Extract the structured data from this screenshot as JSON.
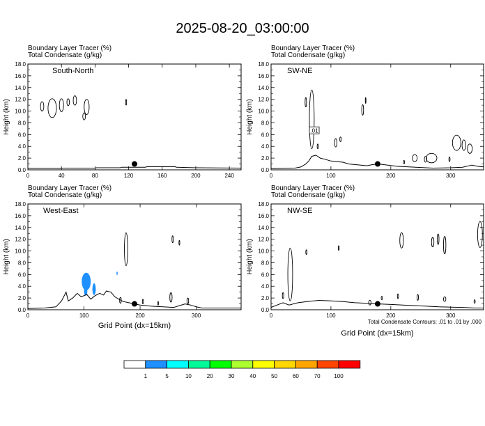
{
  "title": "2025-08-20_03:00:00",
  "panel_header": {
    "line1": "Boundary Layer Tracer   (%)",
    "line2": "Total Condensate   (g/kg)"
  },
  "ylabel": "Height (km)",
  "xlabel": "Grid Point (dx=15km)",
  "contour_note": "Total Condensate Contours: .01 to .01 by .000",
  "colorbar": {
    "colors": [
      "#ffffff",
      "#1e90ff",
      "#00ffff",
      "#00fa9a",
      "#00ff00",
      "#adff2f",
      "#ffff00",
      "#ffd700",
      "#ffa500",
      "#ff4500",
      "#ff0000"
    ],
    "labels": [
      "1",
      "5",
      "10",
      "20",
      "30",
      "40",
      "50",
      "60",
      "70",
      "100"
    ]
  },
  "chart_data": [
    {
      "type": "contour",
      "title": "South-North",
      "xlim": [
        0,
        254
      ],
      "xticks": [
        "0",
        "40",
        "80",
        "120",
        "160",
        "200",
        "240"
      ],
      "ylim": [
        0,
        18
      ],
      "yticks": [
        "0.0",
        "2.0",
        "4.0",
        "6.0",
        "8.0",
        "10.0",
        "12.0",
        "14.0",
        "16.0",
        "18.0"
      ],
      "marker": {
        "x": 127,
        "y": 1.0
      },
      "terrain": [
        [
          0,
          0.25
        ],
        [
          40,
          0.25
        ],
        [
          42,
          0.3
        ],
        [
          80,
          0.3
        ],
        [
          82,
          0.35
        ],
        [
          110,
          0.35
        ],
        [
          112,
          0.45
        ],
        [
          140,
          0.45
        ],
        [
          142,
          0.55
        ],
        [
          175,
          0.55
        ],
        [
          177,
          0.45
        ],
        [
          200,
          0.35
        ],
        [
          254,
          0.3
        ]
      ]
    },
    {
      "type": "contour",
      "title": "SW-NE",
      "xlim": [
        0,
        355
      ],
      "xticks": [
        "0",
        "100",
        "200",
        "300"
      ],
      "ylim": [
        0,
        18
      ],
      "yticks": [
        "0.0",
        "2.0",
        "4.0",
        "6.0",
        "8.0",
        "10.0",
        "12.0",
        "14.0",
        "16.0",
        "18.0"
      ],
      "contour_label": ".01",
      "marker": {
        "x": 178,
        "y": 1.0
      },
      "terrain": [
        [
          0,
          0.2
        ],
        [
          40,
          0.3
        ],
        [
          50,
          0.5
        ],
        [
          58,
          1.0
        ],
        [
          63,
          1.5
        ],
        [
          68,
          2.3
        ],
        [
          75,
          2.5
        ],
        [
          82,
          2.0
        ],
        [
          90,
          1.8
        ],
        [
          100,
          1.5
        ],
        [
          110,
          1.4
        ],
        [
          120,
          1.3
        ],
        [
          130,
          1.0
        ],
        [
          140,
          0.9
        ],
        [
          150,
          0.8
        ],
        [
          160,
          0.7
        ],
        [
          170,
          0.9
        ],
        [
          180,
          1.0
        ],
        [
          195,
          0.8
        ],
        [
          210,
          0.6
        ],
        [
          230,
          0.5
        ],
        [
          250,
          0.4
        ],
        [
          270,
          0.3
        ],
        [
          300,
          0.35
        ],
        [
          320,
          0.45
        ],
        [
          335,
          0.8
        ],
        [
          345,
          0.6
        ],
        [
          355,
          0.5
        ]
      ]
    },
    {
      "type": "contour",
      "title": "West-East",
      "xlim": [
        0,
        380
      ],
      "xticks": [
        "0",
        "100",
        "200",
        "300"
      ],
      "ylim": [
        0,
        18
      ],
      "yticks": [
        "0.0",
        "2.0",
        "4.0",
        "6.0",
        "8.0",
        "10.0",
        "12.0",
        "14.0",
        "16.0",
        "18.0"
      ],
      "marker": {
        "x": 190,
        "y": 1.0
      },
      "terrain": [
        [
          0,
          0.2
        ],
        [
          30,
          0.3
        ],
        [
          50,
          0.5
        ],
        [
          60,
          1.5
        ],
        [
          68,
          3.0
        ],
        [
          72,
          1.5
        ],
        [
          80,
          2.0
        ],
        [
          88,
          2.8
        ],
        [
          95,
          2.2
        ],
        [
          105,
          2.6
        ],
        [
          112,
          1.8
        ],
        [
          120,
          2.4
        ],
        [
          128,
          2.8
        ],
        [
          135,
          2.5
        ],
        [
          140,
          3.2
        ],
        [
          148,
          3.0
        ],
        [
          155,
          2.2
        ],
        [
          162,
          1.8
        ],
        [
          170,
          1.4
        ],
        [
          180,
          1.2
        ],
        [
          190,
          1.0
        ],
        [
          200,
          0.8
        ],
        [
          220,
          0.6
        ],
        [
          240,
          0.5
        ],
        [
          260,
          0.4
        ],
        [
          280,
          1.0
        ],
        [
          290,
          0.8
        ],
        [
          300,
          0.5
        ],
        [
          310,
          0.3
        ],
        [
          380,
          0.3
        ]
      ]
    },
    {
      "type": "contour",
      "title": "NW-SE",
      "xlim": [
        0,
        355
      ],
      "xticks": [
        "0",
        "100",
        "200",
        "300"
      ],
      "ylim": [
        0,
        18
      ],
      "yticks": [
        "0.0",
        "2.0",
        "4.0",
        "6.0",
        "8.0",
        "10.0",
        "12.0",
        "14.0",
        "16.0",
        "18.0"
      ],
      "marker": {
        "x": 178,
        "y": 1.0
      },
      "terrain": [
        [
          0,
          0.4
        ],
        [
          10,
          0.8
        ],
        [
          20,
          1.2
        ],
        [
          30,
          0.8
        ],
        [
          45,
          1.2
        ],
        [
          60,
          1.4
        ],
        [
          80,
          1.6
        ],
        [
          100,
          1.5
        ],
        [
          120,
          1.4
        ],
        [
          140,
          1.2
        ],
        [
          160,
          1.1
        ],
        [
          180,
          1.0
        ],
        [
          200,
          0.9
        ],
        [
          220,
          0.8
        ],
        [
          240,
          0.7
        ],
        [
          260,
          0.6
        ],
        [
          280,
          0.5
        ],
        [
          300,
          0.45
        ],
        [
          320,
          0.4
        ],
        [
          340,
          0.3
        ],
        [
          355,
          0.3
        ]
      ]
    }
  ]
}
